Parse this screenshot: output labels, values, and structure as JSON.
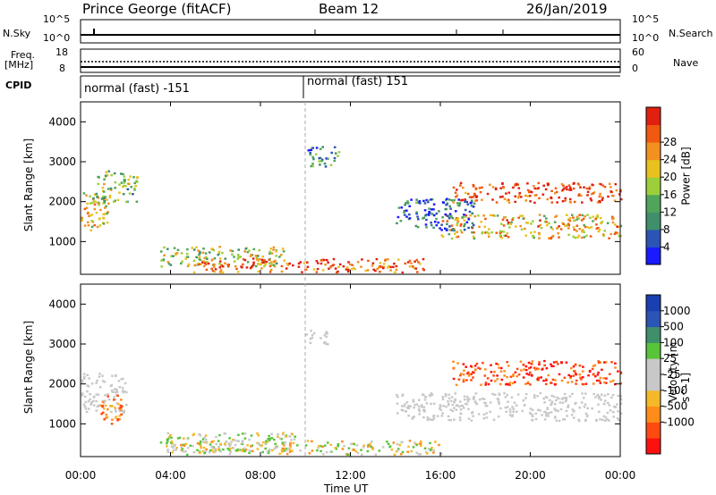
{
  "header": {
    "station": "Prince George (fitACF)",
    "beam": "Beam 12",
    "date": "26/Jan/2019"
  },
  "strip_labels": {
    "nsky": "N.Sky",
    "freq_line1": "Freq.",
    "freq_line2": "[MHz]",
    "cpid": "CPID",
    "nsearch": "N.Search",
    "nave": "Nave",
    "nsky_top": "10^5",
    "nsky_bottom": "10^0",
    "nsearch_top": "10^5",
    "nsearch_bottom": "10^0",
    "freq_top": "18",
    "freq_bottom": "8",
    "nave_top": "60",
    "nave_bottom": "0",
    "cpid_left": "normal (fast) -151",
    "cpid_right": "normal (fast) 151"
  },
  "colors": {
    "power_scale": [
      "#1a1aff",
      "#2b55b5",
      "#3f8f6b",
      "#4fa55a",
      "#9ccf3a",
      "#e8c020",
      "#f29020",
      "#ef5a10",
      "#e02010"
    ],
    "velocity_scale": [
      "#ff1010",
      "#ff4a10",
      "#ff8c1a",
      "#f5b828",
      "#c8c8c8",
      "#c8c8c8",
      "#58c43a",
      "#3f8f6b",
      "#2b55b5",
      "#1a3fb0"
    ]
  },
  "chart_data": [
    {
      "type": "heatmap",
      "title": "",
      "xlabel": "",
      "ylabel": "Slant Range [km]",
      "xticks": [
        "00:00",
        "04:00",
        "08:00",
        "12:00",
        "16:00",
        "20:00",
        "00:00"
      ],
      "yticks": [
        "1000",
        "2000",
        "3000",
        "4000"
      ],
      "colorbar_label": "Power [dB]",
      "colorbar_ticks": [
        "4",
        "8",
        "12",
        "16",
        "20",
        "24",
        "28"
      ],
      "blobs": [
        {
          "t0": 0.0,
          "t1": 1.2,
          "r0": 1300,
          "r1": 2300,
          "level": 0.6
        },
        {
          "t0": 0.5,
          "t1": 2.5,
          "r0": 2000,
          "r1": 2800,
          "level": 0.45
        },
        {
          "t0": 3.5,
          "t1": 9.0,
          "r0": 400,
          "r1": 900,
          "level": 0.5
        },
        {
          "t0": 5.0,
          "t1": 15.5,
          "r0": 250,
          "r1": 600,
          "level": 0.85
        },
        {
          "t0": 10.0,
          "t1": 11.5,
          "r0": 2900,
          "r1": 3400,
          "level": 0.3
        },
        {
          "t0": 16.5,
          "t1": 24.0,
          "r0": 2000,
          "r1": 2500,
          "level": 0.9
        },
        {
          "t0": 16.0,
          "t1": 24.0,
          "r0": 1100,
          "r1": 1700,
          "level": 0.65
        },
        {
          "t0": 14.0,
          "t1": 17.5,
          "r0": 1300,
          "r1": 2100,
          "level": 0.2
        }
      ]
    },
    {
      "type": "heatmap",
      "title": "",
      "xlabel": "Time UT",
      "ylabel": "Slant Range [km]",
      "xticks": [
        "00:00",
        "04:00",
        "08:00",
        "12:00",
        "16:00",
        "20:00",
        "00:00"
      ],
      "yticks": [
        "1000",
        "2000",
        "3000",
        "4000"
      ],
      "colorbar_label": "Velocity [m s^-1]",
      "colorbar_ticks": [
        "1000",
        "500",
        "100",
        "25",
        "-25",
        "-100",
        "-500",
        "-1000"
      ],
      "blobs": [
        {
          "t0": 0.0,
          "t1": 2.0,
          "r0": 1300,
          "r1": 2300,
          "vel": "grey"
        },
        {
          "t0": 0.8,
          "t1": 1.8,
          "r0": 1000,
          "r1": 1800,
          "vel": "orange"
        },
        {
          "t0": 3.5,
          "t1": 9.5,
          "r0": 300,
          "r1": 800,
          "vel": "green"
        },
        {
          "t0": 4.0,
          "t1": 16.0,
          "r0": 250,
          "r1": 600,
          "vel": "mix"
        },
        {
          "t0": 10.0,
          "t1": 11.0,
          "r0": 3000,
          "r1": 3400,
          "vel": "grey"
        },
        {
          "t0": 16.5,
          "t1": 24.0,
          "r0": 2000,
          "r1": 2600,
          "vel": "red"
        },
        {
          "t0": 14.0,
          "t1": 24.0,
          "r0": 1100,
          "r1": 1800,
          "vel": "grey"
        }
      ]
    }
  ],
  "x_axis_title": "Time UT"
}
